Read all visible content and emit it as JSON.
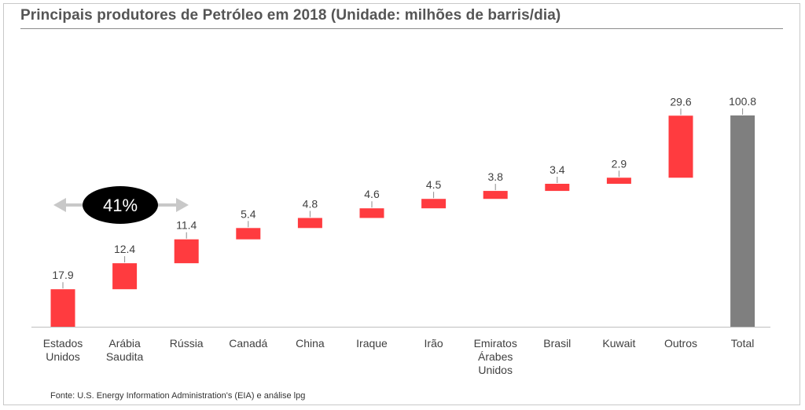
{
  "title": "Principais produtores de Petróleo em 2018 (Unidade: milhões de barris/dia)",
  "source": "Fonte: U.S. Energy Information Administration's (EIA) e análise lpg",
  "annotation": {
    "text": "41%"
  },
  "colors": {
    "bar": "#ff3b3f",
    "total": "#7f7f7f",
    "axis": "#bfbfbf",
    "text": "#404040"
  },
  "chart_data": {
    "type": "bar",
    "subtype": "waterfall",
    "title": "Principais produtores de Petróleo em 2018 (Unidade: milhões de barris/dia)",
    "categories": [
      [
        "Estados",
        "Unidos"
      ],
      [
        "Arábia",
        "Saudita"
      ],
      [
        "Rússia"
      ],
      [
        "Canadá"
      ],
      [
        "China"
      ],
      [
        "Iraque"
      ],
      [
        "Irão"
      ],
      [
        "Emiratos",
        "Árabes",
        "Unidos"
      ],
      [
        "Brasil"
      ],
      [
        "Kuwait"
      ],
      [
        "Outros"
      ],
      [
        "Total"
      ]
    ],
    "values": [
      17.9,
      12.4,
      11.4,
      5.4,
      4.8,
      4.6,
      4.5,
      3.8,
      3.4,
      2.9,
      29.6,
      100.8
    ],
    "value_labels": [
      "17.9",
      "12.4",
      "11.4",
      "5.4",
      "4.8",
      "4.6",
      "4.5",
      "3.8",
      "3.4",
      "2.9",
      "29.6",
      "100.8"
    ],
    "total_index": 11,
    "xlabel": "",
    "ylabel": "",
    "ylim": [
      0,
      100.8
    ],
    "grid": false,
    "legend": "none"
  }
}
